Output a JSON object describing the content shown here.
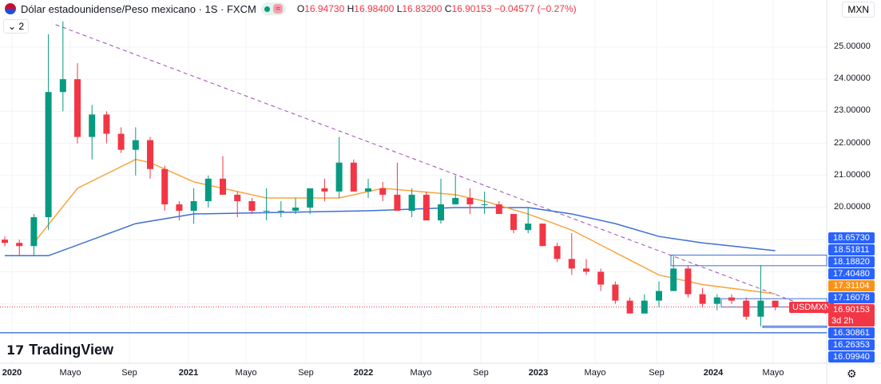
{
  "header": {
    "title": "Dólar estadounidense/Peso mexicano · 1S · FXCM",
    "wave_icon": "≈",
    "open_label": "O",
    "open": "16.94730",
    "high_label": "H",
    "high": "16.98400",
    "low_label": "L",
    "low": "16.83200",
    "close_label": "C",
    "close": "16.90153",
    "change": "−0.04577 (−0.27%)"
  },
  "collapse_label": "2",
  "currency": "MXN",
  "logo": "TradingView",
  "symbol_tag": "USDMXN",
  "countdown": "3d 2h",
  "colors": {
    "up": "#089981",
    "down": "#f23645",
    "ma_fast": "#f7a541",
    "ma_slow": "#3d6fd6",
    "label_blue": "#2962ff",
    "label_orange": "#f7931a"
  },
  "price_axis": [
    "25.00000",
    "24.00000",
    "23.00000",
    "22.00000",
    "21.00000",
    "20.00000"
  ],
  "price_labels": [
    {
      "v": 18.6573,
      "text": "18.65730",
      "color": "#2962ff"
    },
    {
      "v": 18.51811,
      "text": "18.51811",
      "color": "#2962ff"
    },
    {
      "v": 18.1882,
      "text": "18.18820",
      "color": "#2962ff"
    },
    {
      "v": 17.4048,
      "text": "17.40480",
      "color": "#2962ff"
    },
    {
      "v": 17.31104,
      "text": "17.31104",
      "color": "#f7931a"
    },
    {
      "v": 17.16078,
      "text": "17.16078",
      "color": "#2962ff"
    },
    {
      "v": 16.90153,
      "text": "16.90153",
      "color": "#f23645"
    },
    {
      "v": 16.30861,
      "text": "16.30861",
      "color": "#2962ff"
    },
    {
      "v": 16.26353,
      "text": "16.26353",
      "color": "#2962ff"
    },
    {
      "v": 16.0994,
      "text": "16.09940",
      "color": "#2962ff"
    }
  ],
  "time_axis": [
    "2020",
    "Mayo",
    "Sep",
    "2021",
    "Mayo",
    "Sep",
    "2022",
    "Mayo",
    "Sep",
    "2023",
    "Mayo",
    "Sep",
    "2024",
    "Mayo"
  ],
  "chart_data": {
    "type": "candlestick",
    "ylim": [
      15.95,
      26.6
    ],
    "start": "2019-12",
    "interval": "month (approx.)",
    "ohlc": [
      [
        19.0,
        19.1,
        18.8,
        18.9
      ],
      [
        18.9,
        19.0,
        18.5,
        18.8
      ],
      [
        18.8,
        19.8,
        18.5,
        19.7
      ],
      [
        19.7,
        25.4,
        19.3,
        23.6
      ],
      [
        23.6,
        25.8,
        23.0,
        24.0
      ],
      [
        24.0,
        24.5,
        22.0,
        22.2
      ],
      [
        22.2,
        23.2,
        21.5,
        22.9
      ],
      [
        22.9,
        23.0,
        22.0,
        22.3
      ],
      [
        22.3,
        22.5,
        21.7,
        21.8
      ],
      [
        21.8,
        22.5,
        21.0,
        22.1
      ],
      [
        22.1,
        22.2,
        20.9,
        21.2
      ],
      [
        21.2,
        21.3,
        19.9,
        20.1
      ],
      [
        20.1,
        20.2,
        19.6,
        19.9
      ],
      [
        19.9,
        20.6,
        19.5,
        20.2
      ],
      [
        20.2,
        21.0,
        20.0,
        20.9
      ],
      [
        20.9,
        21.6,
        20.4,
        20.4
      ],
      [
        20.4,
        20.5,
        19.7,
        20.2
      ],
      [
        20.2,
        20.3,
        19.8,
        19.9
      ],
      [
        19.9,
        20.6,
        19.6,
        19.9
      ],
      [
        19.9,
        20.2,
        19.7,
        19.9
      ],
      [
        19.9,
        20.3,
        19.8,
        20.0
      ],
      [
        20.0,
        20.6,
        19.8,
        20.6
      ],
      [
        20.6,
        20.9,
        20.2,
        20.5
      ],
      [
        20.5,
        22.2,
        20.3,
        21.4
      ],
      [
        21.4,
        21.5,
        20.5,
        20.5
      ],
      [
        20.5,
        20.9,
        20.3,
        20.6
      ],
      [
        20.6,
        20.8,
        20.2,
        20.4
      ],
      [
        20.4,
        21.4,
        19.9,
        19.9
      ],
      [
        19.9,
        20.6,
        19.7,
        20.4
      ],
      [
        20.4,
        20.5,
        19.6,
        19.6
      ],
      [
        19.6,
        20.9,
        19.5,
        20.1
      ],
      [
        20.1,
        21.0,
        20.1,
        20.3
      ],
      [
        20.3,
        20.6,
        19.8,
        20.1
      ],
      [
        20.1,
        20.5,
        19.8,
        20.1
      ],
      [
        20.1,
        20.2,
        19.8,
        19.8
      ],
      [
        19.8,
        19.8,
        19.2,
        19.3
      ],
      [
        19.3,
        20.0,
        19.2,
        19.5
      ],
      [
        19.5,
        19.5,
        18.8,
        18.8
      ],
      [
        18.8,
        18.9,
        18.3,
        18.4
      ],
      [
        18.4,
        19.2,
        17.9,
        18.1
      ],
      [
        18.1,
        18.4,
        17.9,
        18.0
      ],
      [
        18.0,
        18.1,
        17.4,
        17.6
      ],
      [
        17.6,
        17.7,
        17.0,
        17.1
      ],
      [
        17.1,
        17.2,
        16.7,
        16.7
      ],
      [
        16.7,
        17.3,
        16.7,
        17.1
      ],
      [
        17.1,
        17.7,
        16.9,
        17.4
      ],
      [
        17.4,
        18.5,
        17.4,
        18.1
      ],
      [
        18.1,
        18.2,
        17.2,
        17.3
      ],
      [
        17.3,
        17.5,
        16.9,
        17.0
      ],
      [
        17.0,
        17.3,
        16.8,
        17.2
      ],
      [
        17.2,
        17.3,
        17.0,
        17.1
      ],
      [
        17.1,
        17.2,
        16.5,
        16.6
      ],
      [
        16.6,
        18.2,
        16.3,
        17.1
      ],
      [
        17.1,
        17.1,
        16.8,
        16.90153
      ]
    ],
    "ma_fast": [
      [
        2,
        18.9
      ],
      [
        5,
        20.6
      ],
      [
        9,
        21.5
      ],
      [
        10,
        21.4
      ],
      [
        13,
        20.8
      ],
      [
        18,
        20.3
      ],
      [
        23,
        20.3
      ],
      [
        26,
        20.6
      ],
      [
        31,
        20.4
      ],
      [
        33,
        20.2
      ],
      [
        36,
        19.8
      ],
      [
        39,
        19.3
      ],
      [
        42,
        18.6
      ],
      [
        45,
        17.9
      ],
      [
        48,
        17.6
      ],
      [
        53,
        17.31
      ]
    ],
    "ma_slow": [
      [
        0,
        18.5
      ],
      [
        3,
        18.5
      ],
      [
        9,
        19.5
      ],
      [
        13,
        19.8
      ],
      [
        25,
        19.9
      ],
      [
        31,
        20.0
      ],
      [
        36,
        20.0
      ],
      [
        39,
        19.8
      ],
      [
        42,
        19.5
      ],
      [
        45,
        19.1
      ],
      [
        48,
        18.9
      ],
      [
        53,
        18.657
      ]
    ],
    "trendline": [
      [
        3.5,
        25.7
      ],
      [
        56.5,
        16.7
      ]
    ]
  }
}
